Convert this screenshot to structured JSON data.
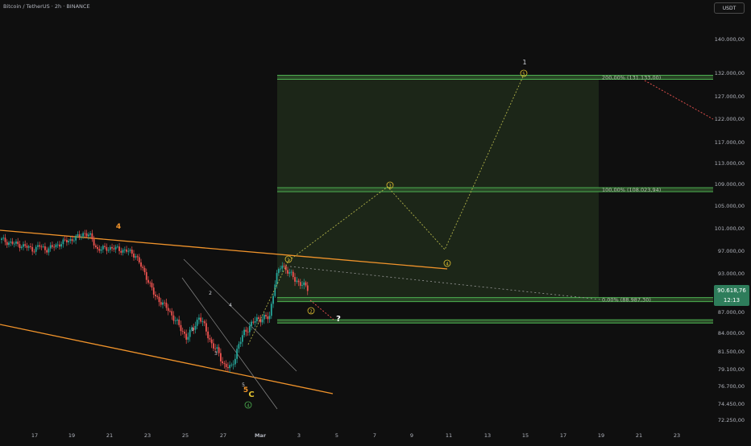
{
  "header": {
    "symbol": "Bitcoin / TetherUS · 2h · BINANCE",
    "currency": "USDT"
  },
  "colors": {
    "background": "#0f0f0f",
    "up_candle": "#26a69a",
    "down_candle": "#ef5350",
    "trendline": "#f0932b",
    "fib_line": "#4caf50",
    "fib_zone": "#1e2a1a",
    "projection": "#c8c850",
    "wave_label_orange": "#f0932b",
    "wave_label_yellow": "#e0c030",
    "wave_label_green": "#4caf50",
    "axis_text": "#b2b5be"
  },
  "chart_data": {
    "type": "candlestick",
    "price_axis": {
      "ticks": [
        "140.000,00",
        "132.000,00",
        "127.000,00",
        "122.000,00",
        "117.000,00",
        "113.000,00",
        "109.000,00",
        "105.000,00",
        "101.000,00",
        "97.000,00",
        "93.000,00",
        "87.000,00",
        "84.000,00",
        "81.500,00",
        "79.100,00",
        "76.700,00",
        "74.450,00",
        "72.250,00"
      ],
      "current_price": "90.618,76",
      "countdown": "12:13"
    },
    "time_axis": {
      "ticks": [
        "17",
        "19",
        "21",
        "23",
        "25",
        "27",
        "Mar",
        "3",
        "5",
        "7",
        "9",
        "11",
        "13",
        "15",
        "17",
        "19",
        "21",
        "23"
      ]
    },
    "fib_levels": [
      {
        "label": "200,00% (131.133,00)",
        "price": 131133
      },
      {
        "label": "100,00% (108.023,94)",
        "price": 108024
      },
      {
        "label": "0,00% (88.987,30)",
        "price": 88987
      }
    ],
    "support_level": 85700,
    "wave_labels": [
      {
        "text": "4",
        "style": "orange"
      },
      {
        "text": "1",
        "style": "small"
      },
      {
        "text": "2",
        "style": "small"
      },
      {
        "text": "3",
        "style": "small"
      },
      {
        "text": "4",
        "style": "small"
      },
      {
        "text": "5",
        "style": "small"
      },
      {
        "text": "5",
        "style": "orange"
      },
      {
        "text": "C",
        "style": "yellow"
      },
      {
        "text": "4",
        "style": "green-circle"
      },
      {
        "text": "1",
        "style": "circle"
      },
      {
        "text": "2",
        "style": "circle"
      },
      {
        "text": "3",
        "style": "circle"
      },
      {
        "text": "4",
        "style": "circle"
      },
      {
        "text": "5",
        "style": "circle"
      },
      {
        "text": "1",
        "style": "big"
      },
      {
        "text": "?",
        "style": "white"
      }
    ],
    "price_series_close": [
      99000,
      98600,
      98300,
      98100,
      97700,
      97300,
      97900,
      97300,
      97700,
      98300,
      98700,
      99100,
      99500,
      100300,
      99500,
      97300,
      97400,
      97600,
      97400,
      97200,
      96900,
      96300,
      94000,
      92000,
      89500,
      88700,
      87500,
      86300,
      84700,
      83500,
      84500,
      86500,
      84500,
      82500,
      81300,
      79600,
      79200,
      82000,
      84000,
      85200,
      85900,
      86300,
      86100,
      92500,
      94500,
      93400,
      92000,
      91500,
      90600
    ]
  }
}
